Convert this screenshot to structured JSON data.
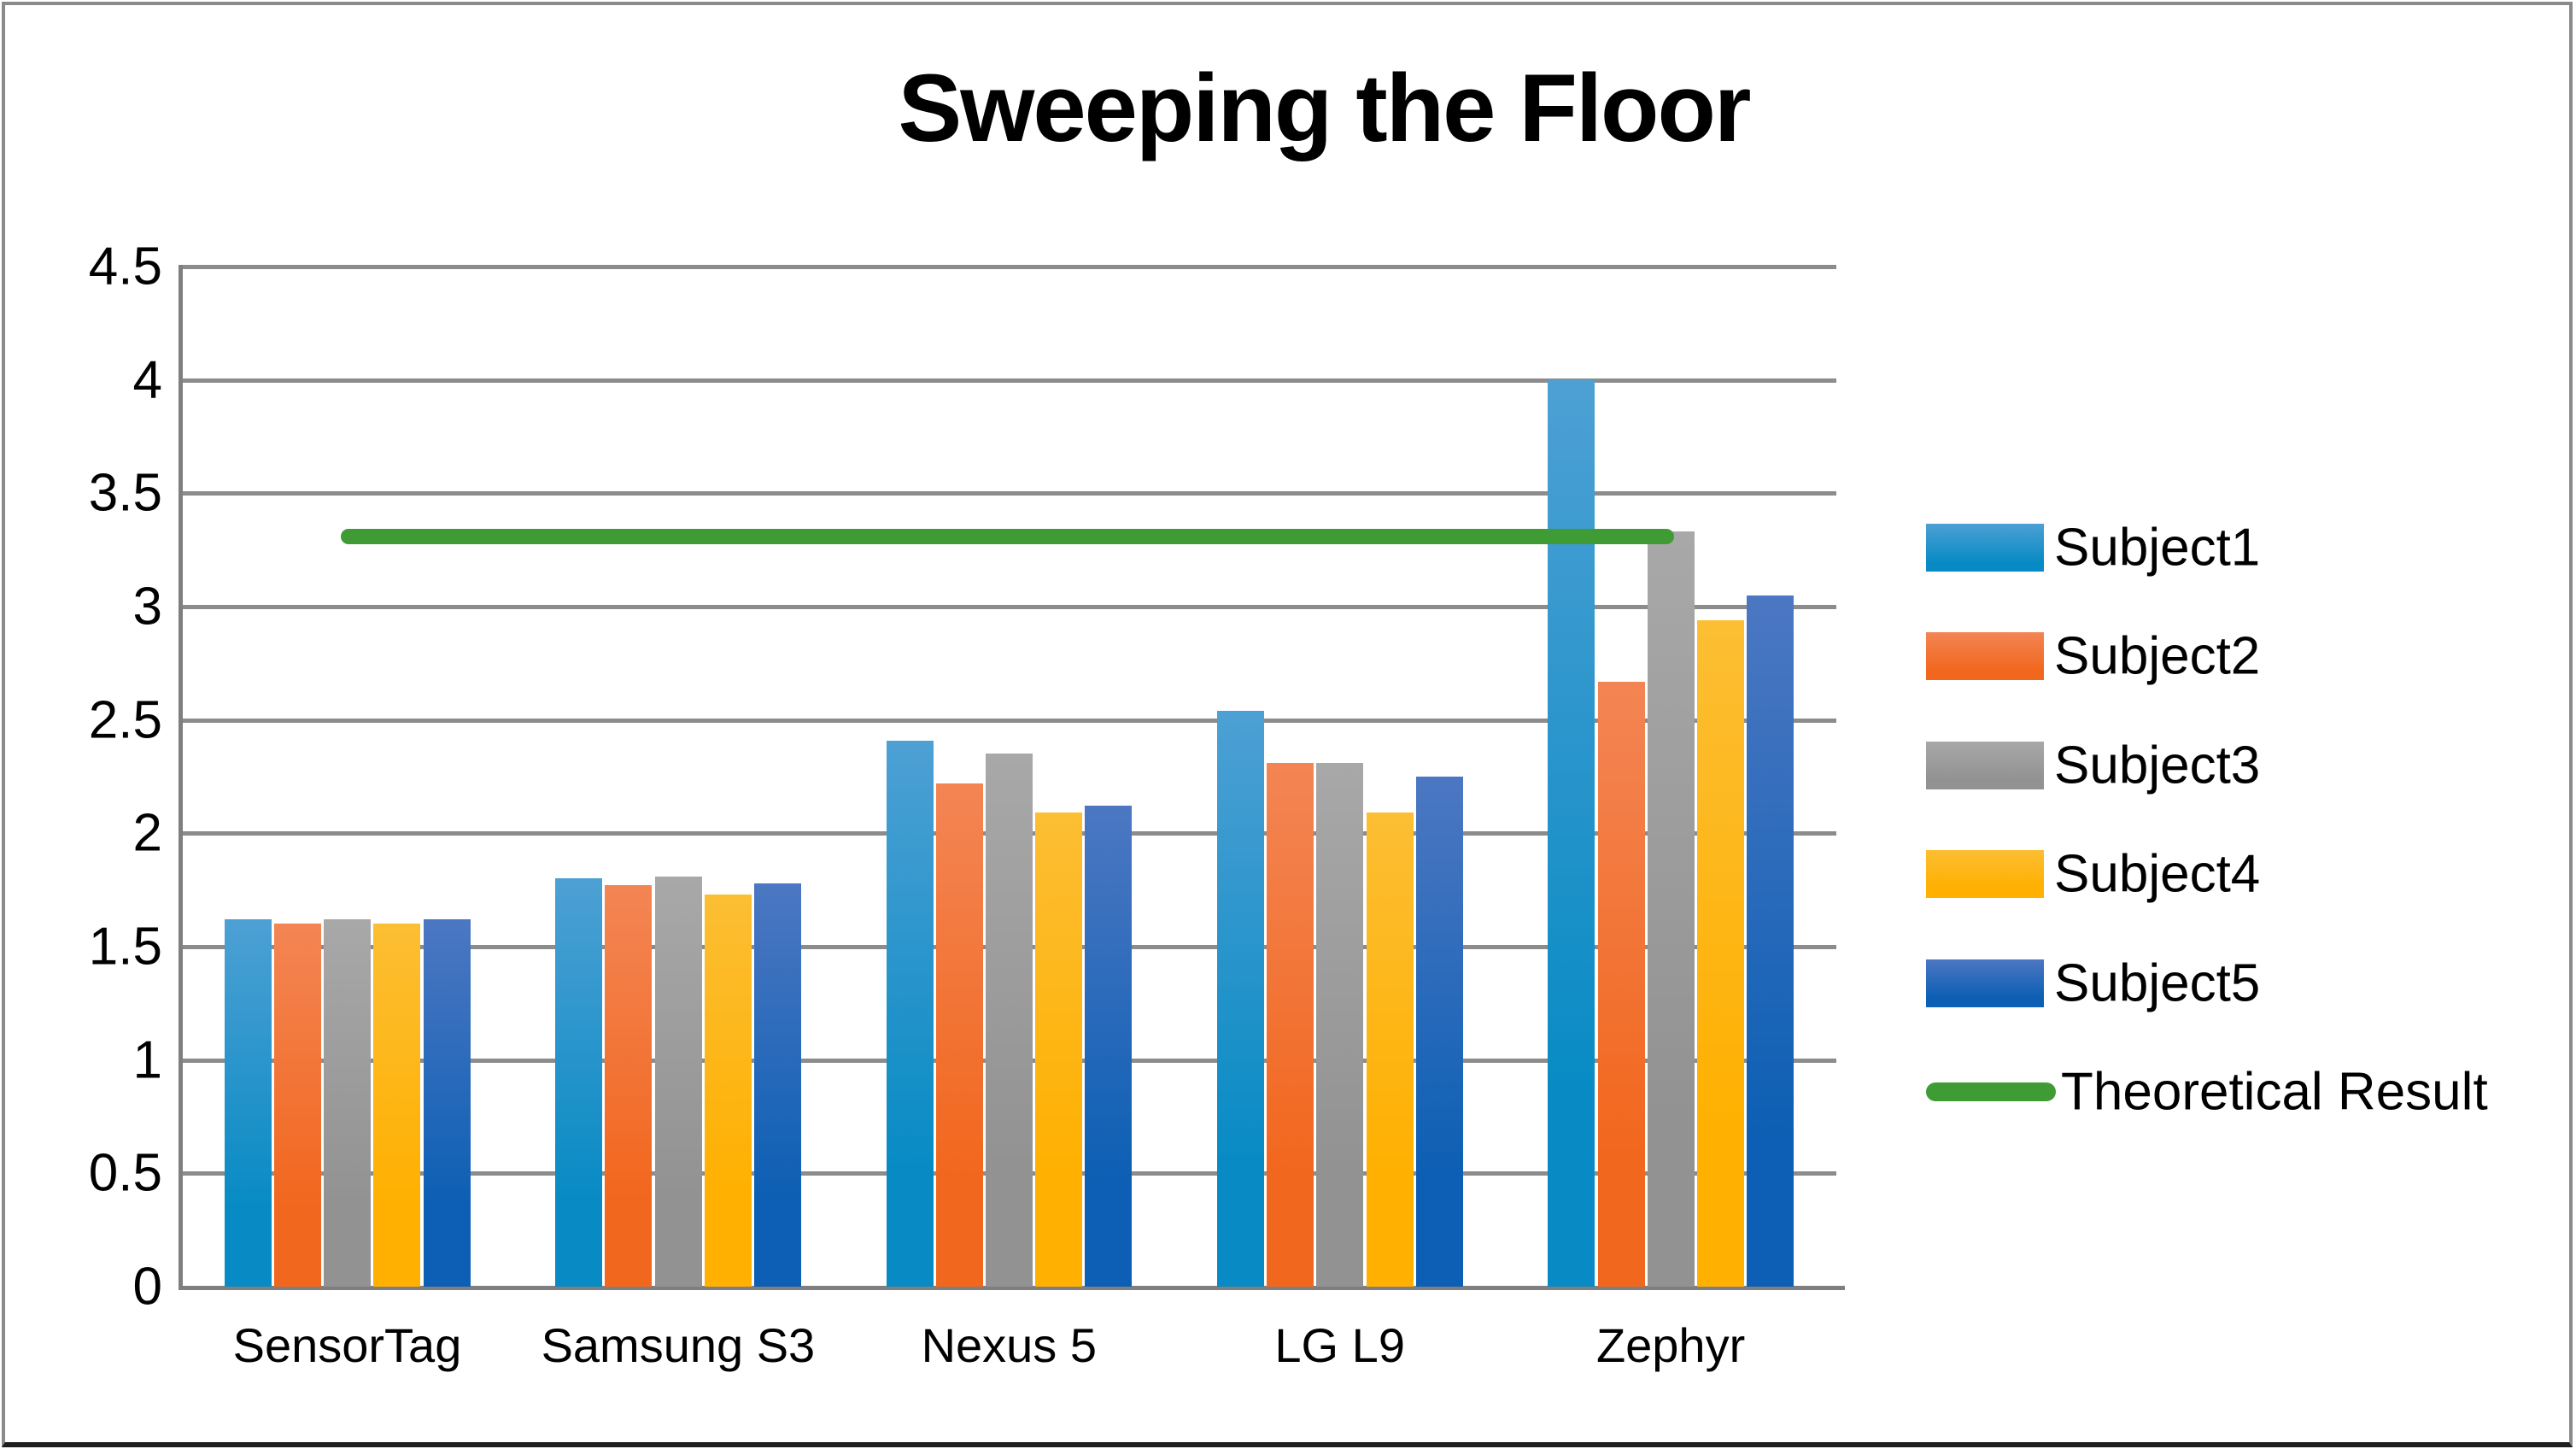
{
  "title": "Sweeping the Floor",
  "chart_data": {
    "type": "bar",
    "title": "Sweeping the Floor",
    "categories": [
      "SensorTag",
      "Samsung S3",
      "Nexus 5",
      "LG L9",
      "Zephyr"
    ],
    "series": [
      {
        "name": "Subject1",
        "color_top": "#4da0d4",
        "color_bottom": "#088bc4",
        "values": [
          1.62,
          1.8,
          2.41,
          2.54,
          4.0
        ]
      },
      {
        "name": "Subject2",
        "color_top": "#f38554",
        "color_bottom": "#f2671e",
        "values": [
          1.6,
          1.77,
          2.22,
          2.31,
          2.67
        ]
      },
      {
        "name": "Subject3",
        "color_top": "#a8a8a8",
        "color_bottom": "#929292",
        "values": [
          1.62,
          1.81,
          2.35,
          2.31,
          3.33
        ]
      },
      {
        "name": "Subject4",
        "color_top": "#fcbe33",
        "color_bottom": "#ffb000",
        "values": [
          1.6,
          1.73,
          2.09,
          2.09,
          2.94
        ]
      },
      {
        "name": "Subject5",
        "color_top": "#4c77c2",
        "color_bottom": "#0c5fb4",
        "values": [
          1.62,
          1.78,
          2.12,
          2.25,
          3.05
        ]
      }
    ],
    "reference_line": {
      "name": "Theoretical Result",
      "value": 3.31,
      "color": "#3f9c35",
      "x_start_frac": 0.096,
      "x_end_frac": 0.902
    },
    "ylim": [
      0,
      4.5
    ],
    "y_tick_step": 0.5,
    "y_ticks": [
      "0",
      "0.5",
      "1",
      "1.5",
      "2",
      "2.5",
      "3",
      "3.5",
      "4",
      "4.5"
    ],
    "grid": true,
    "legend_position": "right",
    "axis_color": "#7f7f7f",
    "grid_color": "#8c8c8c"
  }
}
